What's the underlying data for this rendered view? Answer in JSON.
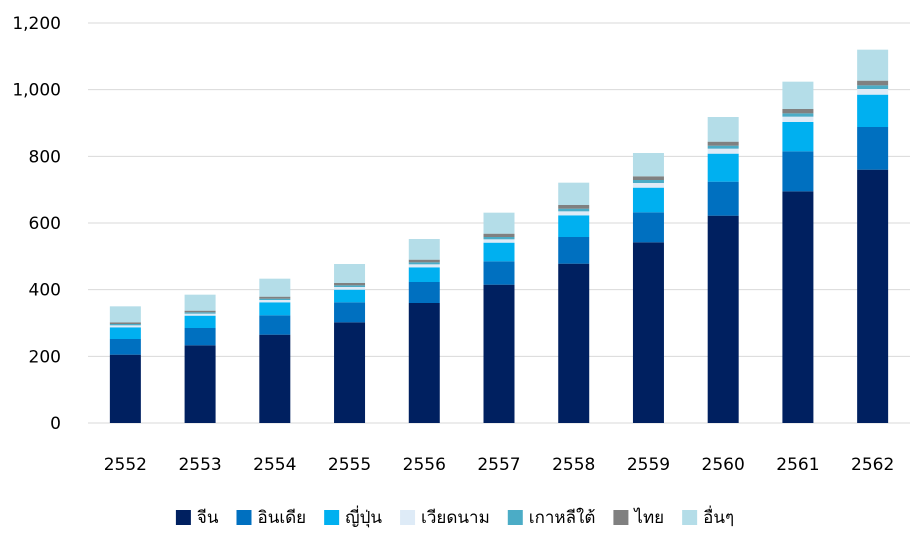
{
  "chart_data": {
    "type": "bar",
    "stacked": true,
    "categories": [
      "2552",
      "2553",
      "2554",
      "2555",
      "2556",
      "2557",
      "2558",
      "2559",
      "2560",
      "2561",
      "2562"
    ],
    "ylim": [
      0,
      1200
    ],
    "yticks": [
      0,
      200,
      400,
      600,
      800,
      1000,
      1200
    ],
    "ytick_labels": [
      "0",
      "200",
      "400",
      "600",
      "800",
      "1,000",
      "1,200"
    ],
    "grid": true,
    "legend_position": "bottom",
    "series": [
      {
        "name": "จีน",
        "color": "#002060",
        "values": [
          205,
          233,
          265,
          302,
          360,
          415,
          478,
          542,
          622,
          695,
          760
        ]
      },
      {
        "name": "อินเดีย",
        "color": "#0070C0",
        "values": [
          47,
          52,
          58,
          60,
          63,
          70,
          80,
          90,
          102,
          120,
          128
        ]
      },
      {
        "name": "ญี่ปุ่น",
        "color": "#00B0F0",
        "values": [
          35,
          37,
          39,
          38,
          44,
          56,
          65,
          74,
          84,
          88,
          97
        ]
      },
      {
        "name": "เวียดนาม",
        "color": "#DEEBF7",
        "values": [
          6,
          6,
          7,
          8,
          9,
          10,
          12,
          14,
          15,
          16,
          17
        ]
      },
      {
        "name": "เกาหลีใต้",
        "color": "#4BACC6",
        "values": [
          4,
          4,
          4,
          5,
          6,
          7,
          8,
          9,
          9,
          10,
          11
        ]
      },
      {
        "name": "ไทย",
        "color": "#808080",
        "values": [
          5,
          5,
          6,
          7,
          8,
          10,
          11,
          11,
          12,
          13,
          14
        ]
      },
      {
        "name": "อื่นๆ",
        "color": "#B4DDE8",
        "values": [
          48,
          48,
          54,
          57,
          62,
          63,
          67,
          70,
          74,
          82,
          93
        ]
      }
    ]
  }
}
